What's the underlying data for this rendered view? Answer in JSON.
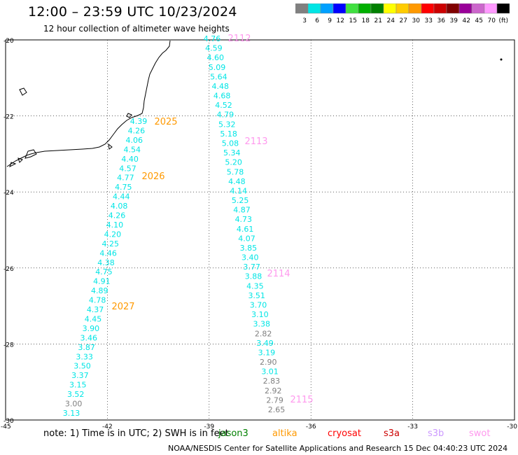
{
  "header": {
    "title": "12:00  –  23:59 UTC 10/23/2024",
    "subtitle": "12 hour collection of altimeter wave heights"
  },
  "legend": {
    "colors": [
      "#808080",
      "#00e5e5",
      "#00a0ff",
      "#0000ff",
      "#40e040",
      "#00b000",
      "#008000",
      "#ffff00",
      "#ffcc00",
      "#ff9900",
      "#ff0000",
      "#cc0000",
      "#800000",
      "#990099",
      "#cc66cc",
      "#ff99ff",
      "#000000"
    ],
    "labels": [
      "3",
      "6",
      "9",
      "12",
      "15",
      "18",
      "21",
      "24",
      "27",
      "30",
      "33",
      "36",
      "39",
      "42",
      "45",
      "70",
      "(ft)"
    ]
  },
  "map": {
    "lat_ticks": [
      "-20",
      "-22",
      "-24",
      "-26",
      "-28",
      "-30"
    ],
    "lon_ticks": [
      "-45",
      "-42",
      "-39",
      "-36",
      "-33",
      "-30"
    ],
    "grid": true
  },
  "passes": [
    {
      "label": "2025",
      "color": "#ff9900"
    },
    {
      "label": "2026",
      "color": "#ff9900"
    },
    {
      "label": "2027",
      "color": "#ff9900"
    },
    {
      "label": "2112",
      "color": "#ff99ee"
    },
    {
      "label": "2113",
      "color": "#ff99ee"
    },
    {
      "label": "2114",
      "color": "#ff99ee"
    },
    {
      "label": "2115",
      "color": "#ff99ee"
    }
  ],
  "track_west": {
    "values": [
      "4.39",
      "4.26",
      "4.06",
      "4.54",
      "4.40",
      "4.57",
      "4.77",
      "4.75",
      "4.44",
      "4.08",
      "4.26",
      "4.10",
      "4.20",
      "4.25",
      "4.46",
      "4.38",
      "4.75",
      "4.91",
      "4.89",
      "4.78",
      "4.37",
      "4.45",
      "3.90",
      "3.46",
      "3.87",
      "3.33",
      "3.50",
      "3.37",
      "3.15",
      "3.52",
      "3.00",
      "3.13"
    ],
    "colors": [
      "#00e5e5",
      "#00e5e5",
      "#00e5e5",
      "#00e5e5",
      "#00e5e5",
      "#00e5e5",
      "#00e5e5",
      "#00e5e5",
      "#00e5e5",
      "#00e5e5",
      "#00e5e5",
      "#00e5e5",
      "#00e5e5",
      "#00e5e5",
      "#00e5e5",
      "#00e5e5",
      "#00e5e5",
      "#00e5e5",
      "#00e5e5",
      "#00e5e5",
      "#00e5e5",
      "#00e5e5",
      "#00e5e5",
      "#00e5e5",
      "#00e5e5",
      "#00e5e5",
      "#00e5e5",
      "#00e5e5",
      "#00e5e5",
      "#00e5e5",
      "#808080",
      "#00e5e5"
    ]
  },
  "track_east": {
    "values": [
      "4.76",
      "4.59",
      "4.60",
      "5.09",
      "5.64",
      "4.48",
      "4.68",
      "4.52",
      "4.79",
      "5.32",
      "5.18",
      "5.08",
      "5.34",
      "5.20",
      "5.78",
      "4.48",
      "4.14",
      "5.25",
      "4.87",
      "4.73",
      "4.61",
      "4.07",
      "3.85",
      "3.40",
      "3.77",
      "3.88",
      "4.35",
      "3.51",
      "3.70",
      "3.10",
      "3.38",
      "2.82",
      "3.49",
      "3.19",
      "2.90",
      "3.01",
      "2.83",
      "2.92",
      "2.79",
      "2.65"
    ],
    "colors": [
      "#00e5e5",
      "#00e5e5",
      "#00e5e5",
      "#00e5e5",
      "#00e5e5",
      "#00e5e5",
      "#00e5e5",
      "#00e5e5",
      "#00e5e5",
      "#00e5e5",
      "#00e5e5",
      "#00e5e5",
      "#00e5e5",
      "#00e5e5",
      "#00e5e5",
      "#00e5e5",
      "#00e5e5",
      "#00e5e5",
      "#00e5e5",
      "#00e5e5",
      "#00e5e5",
      "#00e5e5",
      "#00e5e5",
      "#00e5e5",
      "#00e5e5",
      "#00e5e5",
      "#00e5e5",
      "#00e5e5",
      "#00e5e5",
      "#00e5e5",
      "#00e5e5",
      "#808080",
      "#00e5e5",
      "#00e5e5",
      "#808080",
      "#00e5e5",
      "#808080",
      "#808080",
      "#808080",
      "#808080"
    ]
  },
  "note": "note:  1) Time is in UTC; 2) SWH is in feet",
  "missions": [
    {
      "name": "jason3",
      "color": "#008000"
    },
    {
      "name": "altika",
      "color": "#ff9900"
    },
    {
      "name": "cryosat",
      "color": "#ff0000"
    },
    {
      "name": "s3a",
      "color": "#cc0000"
    },
    {
      "name": "s3b",
      "color": "#cc99ff"
    },
    {
      "name": "swot",
      "color": "#ff99ee"
    }
  ],
  "footer": "NOAA/NESDIS Center for Satellite Applications and Research    15 Dec 04:40:23 UTC 2024"
}
